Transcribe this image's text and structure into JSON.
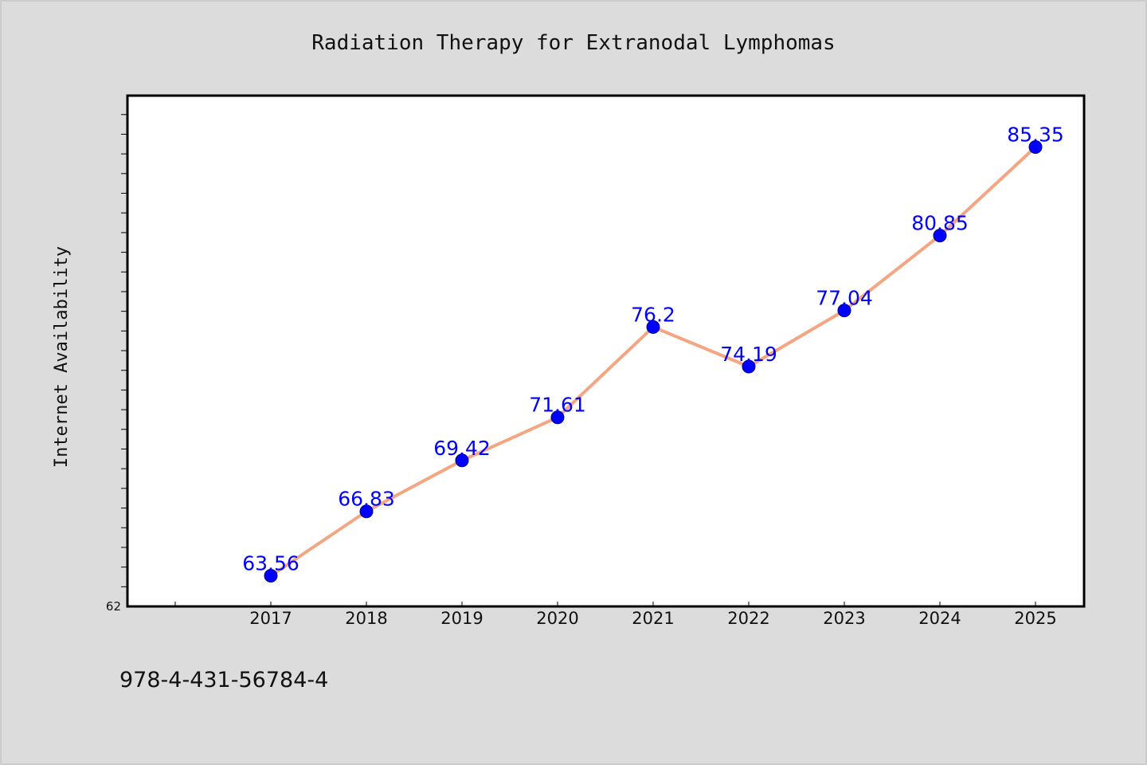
{
  "page": {
    "footer_text": "978-4-431-56784-4"
  },
  "colors": {
    "background": "#dcdcdc",
    "plot_background": "#ffffff",
    "line": "#f4a582",
    "marker": "#0000ff",
    "data_label": "#0000ff",
    "axis": "#000000"
  },
  "chart_data": {
    "type": "line",
    "title": "Radiation Therapy for Extranodal Lymphomas",
    "xlabel": "",
    "ylabel": "Internet Availability",
    "categories": [
      "2017",
      "2018",
      "2019",
      "2020",
      "2021",
      "2022",
      "2023",
      "2024",
      "2025"
    ],
    "series": [
      {
        "values": [
          63.56,
          66.83,
          69.42,
          71.61,
          76.2,
          74.19,
          77.04,
          80.85,
          85.35
        ],
        "data_labels": [
          "63.56",
          "66.83",
          "69.42",
          "71.61",
          "76.2",
          "74.19",
          "77.04",
          "80.85",
          "85.35"
        ]
      }
    ],
    "ylim": [
      62,
      88
    ],
    "ytick_labels": [
      "62"
    ],
    "grid": false,
    "legend": "none",
    "markers": "circle"
  }
}
